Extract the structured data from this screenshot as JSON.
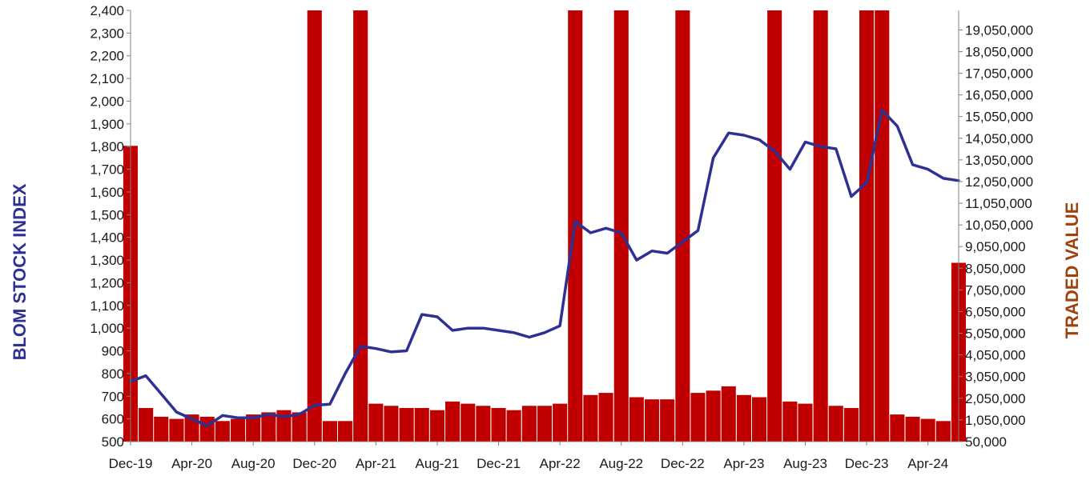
{
  "chart_data": {
    "type": "bar+line",
    "title": "",
    "xlabel": "",
    "ylabel": "BLOM STOCK INDEX",
    "y2label": "TRADED VALUE",
    "colors": {
      "index_line": "#2E3192",
      "bars": "#C00000",
      "left_title": "#2E3192",
      "right_title": "#A0410D"
    },
    "x_tick_labels": [
      "Dec-19",
      "Apr-20",
      "Aug-20",
      "Dec-20",
      "Apr-21",
      "Aug-21",
      "Dec-21",
      "Apr-22",
      "Aug-22",
      "Dec-22",
      "Apr-23",
      "Aug-23",
      "Dec-23",
      "Apr-24"
    ],
    "y_tick_labels": [
      "500",
      "600",
      "700",
      "800",
      "900",
      "1,000",
      "1,100",
      "1,200",
      "1,300",
      "1,400",
      "1,500",
      "1,600",
      "1,700",
      "1,800",
      "1,900",
      "2,000",
      "2,100",
      "2,200",
      "2,300",
      "2,400"
    ],
    "y2_tick_labels": [
      "50,000",
      "1,050,000",
      "2,050,000",
      "3,050,000",
      "4,050,000",
      "5,050,000",
      "6,050,000",
      "7,050,000",
      "8,050,000",
      "9,050,000",
      "10,050,000",
      "11,050,000",
      "12,050,000",
      "13,050,000",
      "14,050,000",
      "15,050,000",
      "16,050,000",
      "17,050,000",
      "18,050,000",
      "19,050,000"
    ],
    "ylim": [
      500,
      2400
    ],
    "y2lim": [
      50000,
      19950000
    ],
    "xlim": [
      "2019-12",
      "2024-06"
    ],
    "grid": false,
    "legend": "none",
    "series": [
      {
        "type": "line",
        "axis": "left",
        "x": [
          "2019-12",
          "2020-01",
          "2020-02",
          "2020-03",
          "2020-04",
          "2020-05",
          "2020-06",
          "2020-07",
          "2020-08",
          "2020-09",
          "2020-10",
          "2020-11",
          "2020-12",
          "2021-01",
          "2021-02",
          "2021-03",
          "2021-04",
          "2021-05",
          "2021-06",
          "2021-07",
          "2021-08",
          "2021-09",
          "2021-10",
          "2021-11",
          "2021-12",
          "2022-01",
          "2022-02",
          "2022-03",
          "2022-04",
          "2022-05",
          "2022-06",
          "2022-07",
          "2022-08",
          "2022-09",
          "2022-10",
          "2022-11",
          "2022-12",
          "2023-01",
          "2023-02",
          "2023-03",
          "2023-04",
          "2023-05",
          "2023-06",
          "2023-07",
          "2023-08",
          "2023-09",
          "2023-10",
          "2023-11",
          "2023-12",
          "2024-01",
          "2024-02",
          "2024-03",
          "2024-04",
          "2024-05",
          "2024-06"
        ],
        "values": [
          765,
          790,
          710,
          630,
          600,
          570,
          615,
          605,
          605,
          620,
          610,
          620,
          660,
          665,
          800,
          920,
          910,
          895,
          900,
          1060,
          1050,
          990,
          1000,
          1000,
          990,
          980,
          960,
          980,
          1010,
          1470,
          1420,
          1440,
          1420,
          1300,
          1340,
          1330,
          1380,
          1430,
          1750,
          1860,
          1850,
          1830,
          1780,
          1700,
          1820,
          1800,
          1790,
          1580,
          1640,
          1960,
          1890,
          1720,
          1700,
          1660,
          1650
        ]
      },
      {
        "type": "bar",
        "axis": "right",
        "x": [
          "2019-12",
          "2020-01",
          "2020-02",
          "2020-03",
          "2020-04",
          "2020-05",
          "2020-06",
          "2020-07",
          "2020-08",
          "2020-09",
          "2020-10",
          "2020-11",
          "2020-12",
          "2021-01",
          "2021-02",
          "2021-03",
          "2021-04",
          "2021-05",
          "2021-06",
          "2021-07",
          "2021-08",
          "2021-09",
          "2021-10",
          "2021-11",
          "2021-12",
          "2022-01",
          "2022-02",
          "2022-03",
          "2022-04",
          "2022-05",
          "2022-06",
          "2022-07",
          "2022-08",
          "2022-09",
          "2022-10",
          "2022-11",
          "2022-12",
          "2023-01",
          "2023-02",
          "2023-03",
          "2023-04",
          "2023-05",
          "2023-06",
          "2023-07",
          "2023-08",
          "2023-09",
          "2023-10",
          "2023-11",
          "2023-12",
          "2024-01",
          "2024-02",
          "2024-03",
          "2024-04",
          "2024-05",
          "2024-06"
        ],
        "values": [
          13700000,
          1600000,
          1200000,
          1100000,
          1300000,
          1200000,
          1000000,
          1100000,
          1300000,
          1400000,
          1500000,
          1400000,
          20000000,
          1000000,
          1000000,
          20000000,
          1800000,
          1700000,
          1600000,
          1600000,
          1500000,
          1900000,
          1800000,
          1700000,
          1600000,
          1500000,
          1700000,
          1700000,
          1800000,
          20000000,
          2200000,
          2300000,
          20000000,
          2100000,
          2000000,
          2000000,
          20000000,
          2300000,
          2400000,
          2600000,
          2200000,
          2100000,
          20000000,
          1900000,
          1800000,
          20000000,
          1700000,
          1600000,
          20000000,
          20000000,
          1300000,
          1200000,
          1100000,
          1000000,
          8300000
        ]
      }
    ]
  }
}
